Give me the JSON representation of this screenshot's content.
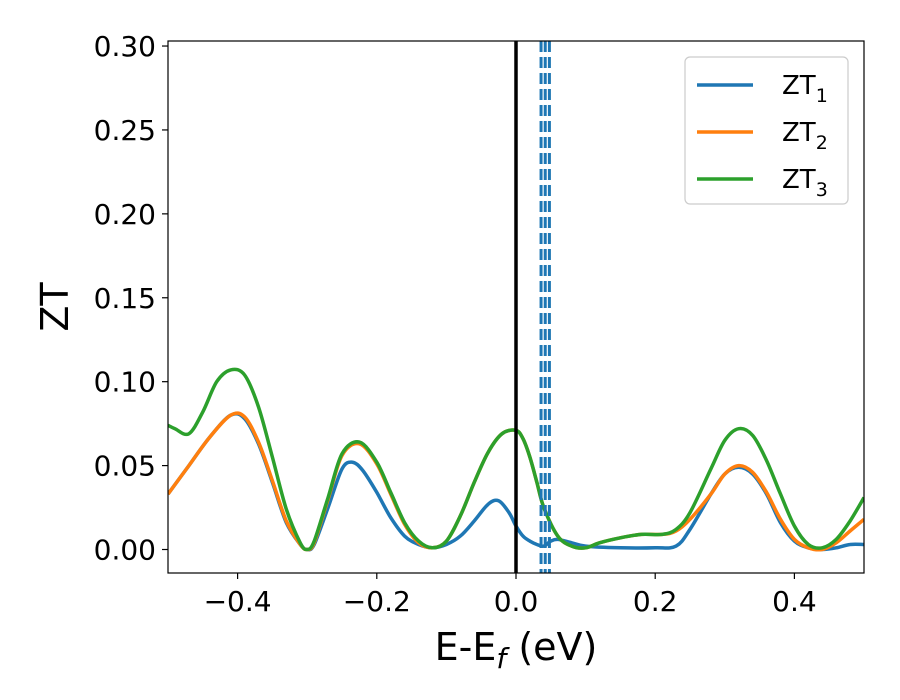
{
  "chart_data": {
    "type": "line",
    "xlabel": "E-E",
    "xlabel_sub": "f",
    "xlabel_unit": " (eV)",
    "ylabel": "ZT",
    "xlim": [
      -0.5,
      0.5
    ],
    "ylim": [
      -0.014,
      0.303
    ],
    "x_ticks": [
      {
        "value": -0.4,
        "label": "−0.4"
      },
      {
        "value": -0.2,
        "label": "−0.2"
      },
      {
        "value": 0.0,
        "label": "0.0"
      },
      {
        "value": 0.2,
        "label": "0.2"
      },
      {
        "value": 0.4,
        "label": "0.4"
      }
    ],
    "y_ticks": [
      {
        "value": 0.0,
        "label": "0.00"
      },
      {
        "value": 0.05,
        "label": "0.05"
      },
      {
        "value": 0.1,
        "label": "0.10"
      },
      {
        "value": 0.15,
        "label": "0.15"
      },
      {
        "value": 0.2,
        "label": "0.20"
      },
      {
        "value": 0.25,
        "label": "0.25"
      },
      {
        "value": 0.3,
        "label": "0.30"
      }
    ],
    "grid": false,
    "legend_position": "top-right",
    "vertical_lines": [
      {
        "x": 0.0,
        "style": "solid",
        "color": "#000000"
      },
      {
        "x": 0.036,
        "style": "dashed",
        "color": "#1f77b4"
      },
      {
        "x": 0.042,
        "style": "dashed",
        "color": "#1f77b4"
      },
      {
        "x": 0.048,
        "style": "dashed",
        "color": "#1f77b4"
      }
    ],
    "series": [
      {
        "name": "ZT",
        "name_sub": "1",
        "color": "#1f77b4",
        "x": [
          -0.5,
          -0.47,
          -0.44,
          -0.41,
          -0.39,
          -0.37,
          -0.35,
          -0.33,
          -0.31,
          -0.3,
          -0.29,
          -0.27,
          -0.25,
          -0.235,
          -0.22,
          -0.2,
          -0.18,
          -0.16,
          -0.14,
          -0.12,
          -0.1,
          -0.08,
          -0.06,
          -0.04,
          -0.025,
          -0.01,
          0.0,
          0.01,
          0.02,
          0.03,
          0.04,
          0.05,
          0.06,
          0.08,
          0.1,
          0.15,
          0.2,
          0.23,
          0.25,
          0.28,
          0.3,
          0.32,
          0.34,
          0.36,
          0.38,
          0.4,
          0.42,
          0.44,
          0.46,
          0.48,
          0.5
        ],
        "y": [
          0.033,
          0.05,
          0.067,
          0.08,
          0.078,
          0.063,
          0.04,
          0.016,
          0.003,
          0.0,
          0.003,
          0.025,
          0.048,
          0.052,
          0.047,
          0.034,
          0.019,
          0.008,
          0.003,
          0.001,
          0.003,
          0.008,
          0.017,
          0.027,
          0.029,
          0.022,
          0.014,
          0.008,
          0.005,
          0.003,
          0.002,
          0.005,
          0.006,
          0.004,
          0.002,
          0.001,
          0.001,
          0.002,
          0.012,
          0.033,
          0.045,
          0.049,
          0.045,
          0.033,
          0.016,
          0.005,
          0.001,
          0.0,
          0.001,
          0.003,
          0.003
        ]
      },
      {
        "name": "ZT",
        "name_sub": "2",
        "color": "#ff7f0e",
        "x": [
          -0.5,
          -0.47,
          -0.44,
          -0.41,
          -0.39,
          -0.37,
          -0.35,
          -0.33,
          -0.31,
          -0.3,
          -0.29,
          -0.27,
          -0.25,
          -0.225,
          -0.2,
          -0.18,
          -0.16,
          -0.14,
          -0.12,
          -0.1,
          -0.08,
          -0.06,
          -0.04,
          -0.02,
          0.0,
          0.01,
          0.02,
          0.03,
          0.04,
          0.06,
          0.08,
          0.1,
          0.12,
          0.15,
          0.18,
          0.21,
          0.23,
          0.25,
          0.28,
          0.3,
          0.32,
          0.34,
          0.36,
          0.38,
          0.4,
          0.42,
          0.44,
          0.46,
          0.48,
          0.5
        ],
        "y": [
          0.033,
          0.05,
          0.067,
          0.08,
          0.079,
          0.064,
          0.041,
          0.017,
          0.003,
          0.0,
          0.004,
          0.03,
          0.056,
          0.063,
          0.051,
          0.033,
          0.015,
          0.004,
          0.001,
          0.005,
          0.02,
          0.04,
          0.058,
          0.069,
          0.071,
          0.066,
          0.055,
          0.04,
          0.025,
          0.008,
          0.002,
          0.001,
          0.004,
          0.007,
          0.009,
          0.009,
          0.011,
          0.018,
          0.033,
          0.045,
          0.05,
          0.046,
          0.034,
          0.018,
          0.006,
          0.001,
          0.0,
          0.004,
          0.011,
          0.018
        ]
      },
      {
        "name": "ZT",
        "name_sub": "3",
        "color": "#2ca02c",
        "x": [
          -0.5,
          -0.49,
          -0.47,
          -0.45,
          -0.43,
          -0.41,
          -0.39,
          -0.37,
          -0.35,
          -0.33,
          -0.31,
          -0.3,
          -0.29,
          -0.27,
          -0.25,
          -0.225,
          -0.2,
          -0.18,
          -0.16,
          -0.14,
          -0.12,
          -0.1,
          -0.08,
          -0.06,
          -0.04,
          -0.02,
          0.0,
          0.01,
          0.02,
          0.03,
          0.04,
          0.06,
          0.08,
          0.1,
          0.12,
          0.15,
          0.18,
          0.21,
          0.23,
          0.25,
          0.28,
          0.3,
          0.32,
          0.34,
          0.36,
          0.38,
          0.4,
          0.42,
          0.44,
          0.46,
          0.48,
          0.5
        ],
        "y": [
          0.074,
          0.072,
          0.069,
          0.082,
          0.1,
          0.107,
          0.104,
          0.085,
          0.055,
          0.024,
          0.004,
          0.0,
          0.005,
          0.031,
          0.057,
          0.064,
          0.052,
          0.034,
          0.016,
          0.005,
          0.001,
          0.005,
          0.02,
          0.04,
          0.058,
          0.069,
          0.071,
          0.066,
          0.055,
          0.04,
          0.025,
          0.008,
          0.002,
          0.001,
          0.004,
          0.007,
          0.009,
          0.009,
          0.012,
          0.022,
          0.048,
          0.065,
          0.072,
          0.068,
          0.053,
          0.033,
          0.014,
          0.003,
          0.001,
          0.006,
          0.017,
          0.031
        ]
      }
    ]
  }
}
